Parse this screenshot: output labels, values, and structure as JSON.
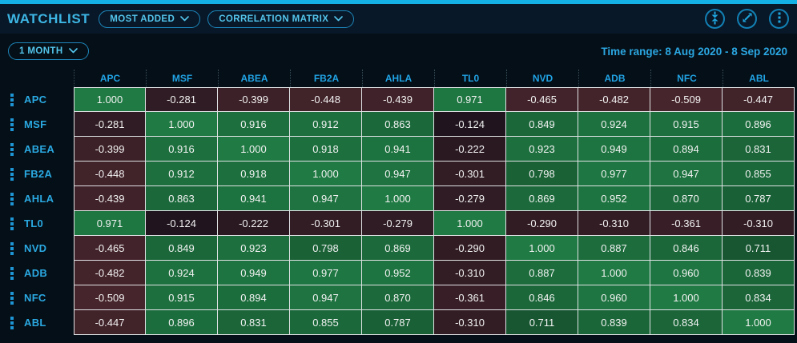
{
  "header": {
    "title": "WATCHLIST",
    "view_dropdown": "MOST ADDED",
    "mode_dropdown": "CORRELATION MATRIX",
    "icons": [
      "collapse-icon",
      "expand-icon",
      "kebab-menu-icon"
    ]
  },
  "toolbar": {
    "period_dropdown": "1 MONTH",
    "time_range": "Time range: 8 Aug 2020 - 8 Sep 2020"
  },
  "chart_data": {
    "type": "heatmap",
    "title": "Correlation Matrix",
    "columns": [
      "APC",
      "MSF",
      "ABEA",
      "FB2A",
      "AHLA",
      "TL0",
      "NVD",
      "ADB",
      "NFC",
      "ABL"
    ],
    "rows": [
      "APC",
      "MSF",
      "ABEA",
      "FB2A",
      "AHLA",
      "TL0",
      "NVD",
      "ADB",
      "NFC",
      "ABL"
    ],
    "values": [
      [
        1.0,
        -0.281,
        -0.399,
        -0.448,
        -0.439,
        0.971,
        -0.465,
        -0.482,
        -0.509,
        -0.447
      ],
      [
        -0.281,
        1.0,
        0.916,
        0.912,
        0.863,
        -0.124,
        0.849,
        0.924,
        0.915,
        0.896
      ],
      [
        -0.399,
        0.916,
        1.0,
        0.918,
        0.941,
        -0.222,
        0.923,
        0.949,
        0.894,
        0.831
      ],
      [
        -0.448,
        0.912,
        0.918,
        1.0,
        0.947,
        -0.301,
        0.798,
        0.977,
        0.947,
        0.855
      ],
      [
        -0.439,
        0.863,
        0.941,
        0.947,
        1.0,
        -0.279,
        0.869,
        0.952,
        0.87,
        0.787
      ],
      [
        0.971,
        -0.124,
        -0.222,
        -0.301,
        -0.279,
        1.0,
        -0.29,
        -0.31,
        -0.361,
        -0.31
      ],
      [
        -0.465,
        0.849,
        0.923,
        0.798,
        0.869,
        -0.29,
        1.0,
        0.887,
        0.846,
        0.711
      ],
      [
        -0.482,
        0.924,
        0.949,
        0.977,
        0.952,
        -0.31,
        0.887,
        1.0,
        0.96,
        0.839
      ],
      [
        -0.509,
        0.915,
        0.894,
        0.947,
        0.87,
        -0.361,
        0.846,
        0.96,
        1.0,
        0.834
      ],
      [
        -0.447,
        0.896,
        0.831,
        0.855,
        0.787,
        -0.31,
        0.711,
        0.839,
        0.834,
        1.0
      ]
    ],
    "value_range": [
      -1,
      1
    ],
    "decimals": 3,
    "colors": {
      "positive_high": "#1f7a43",
      "positive_low": "#123c24",
      "negative_high": "#4b272e",
      "negative_low": "#131019",
      "accent_cyan": "#14b1e7",
      "text_cyan": "#2aa9e2",
      "cell_text": "#f2f2f2",
      "grid_border": "#dfe2e4"
    }
  }
}
